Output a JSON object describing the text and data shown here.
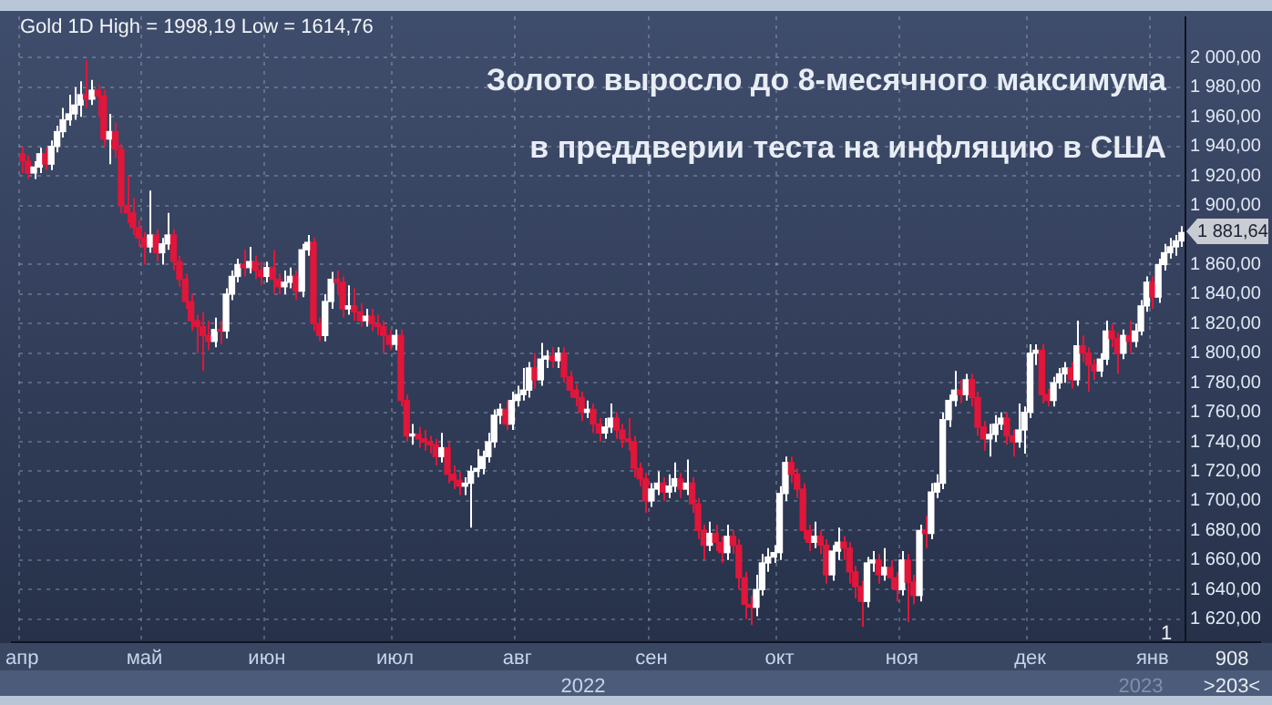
{
  "chart_data": {
    "type": "candlestick",
    "title": "Gold 1D High = 1998,19 Low = 1614,76",
    "annotations": [
      "Золото выросло до 8-месячного максимума",
      "в преддверии теста на инфляцию в США",
      "1 881,64",
      "2022",
      "2023",
      "908",
      ">203<",
      "1"
    ],
    "colors": [
      "#e0163a",
      "#e0163a",
      "#ffffff",
      "#ffffff",
      "#e0163a",
      "#ffffff",
      "#ffffff",
      "#ffffff",
      "#ffffff",
      "#ffffff",
      "#ffffff",
      "#e0163a",
      "#ffffff",
      "#e0163a",
      "#e0163a",
      "#ffffff",
      "#e0163a",
      "#e0163a",
      "#e0163a",
      "#e0163a",
      "#e0163a",
      "#e0163a",
      "#ffffff",
      "#e0163a",
      "#ffffff",
      "#ffffff",
      "#e0163a",
      "#e0163a",
      "#e0163a",
      "#e0163a",
      "#e0163a",
      "#e0163a",
      "#e0163a",
      "#ffffff",
      "#e0163a",
      "#ffffff",
      "#ffffff",
      "#ffffff",
      "#e0163a",
      "#ffffff",
      "#e0163a",
      "#e0163a",
      "#ffffff",
      "#e0163a",
      "#e0163a",
      "#ffffff",
      "#ffffff",
      "#e0163a",
      "#ffffff",
      "#ffffff",
      "#e0163a",
      "#e0163a",
      "#ffffff",
      "#ffffff",
      "#e0163a",
      "#e0163a",
      "#ffffff",
      "#e0163a",
      "#e0163a",
      "#ffffff",
      "#e0163a",
      "#e0163a",
      "#e0163a",
      "#e0163a",
      "#ffffff",
      "#e0163a",
      "#e0163a",
      "#ffffff",
      "#e0163a",
      "#e0163a",
      "#e0163a",
      "#e0163a",
      "#ffffff",
      "#e0163a",
      "#e0163a",
      "#e0163a",
      "#ffffff",
      "#ffffff",
      "#ffffff",
      "#ffffff",
      "#ffffff",
      "#ffffff",
      "#ffffff",
      "#e0163a",
      "#ffffff",
      "#ffffff",
      "#ffffff",
      "#ffffff",
      "#e0163a",
      "#ffffff",
      "#ffffff",
      "#e0163a",
      "#ffffff",
      "#e0163a",
      "#e0163a",
      "#e0163a",
      "#e0163a",
      "#ffffff",
      "#e0163a",
      "#e0163a",
      "#ffffff",
      "#ffffff",
      "#e0163a",
      "#e0163a",
      "#e0163a",
      "#e0163a",
      "#e0163a",
      "#e0163a",
      "#ffffff",
      "#ffffff",
      "#e0163a",
      "#ffffff",
      "#ffffff",
      "#e0163a",
      "#ffffff",
      "#e0163a",
      "#e0163a",
      "#e0163a",
      "#ffffff",
      "#e0163a",
      "#e0163a",
      "#ffffff",
      "#e0163a",
      "#e0163a",
      "#e0163a",
      "#e0163a",
      "#ffffff",
      "#ffffff",
      "#ffffff",
      "#ffffff",
      "#ffffff",
      "#ffffff",
      "#e0163a",
      "#e0163a",
      "#e0163a",
      "#e0163a",
      "#ffffff",
      "#e0163a",
      "#e0163a",
      "#ffffff",
      "#ffffff",
      "#e0163a",
      "#e0163a",
      "#e0163a",
      "#e0163a",
      "#ffffff",
      "#ffffff",
      "#e0163a",
      "#ffffff",
      "#e0163a",
      "#e0163a",
      "#ffffff",
      "#e0163a",
      "#e0163a",
      "#ffffff",
      "#e0163a",
      "#ffffff",
      "#ffffff",
      "#ffffff",
      "#ffffff",
      "#ffffff",
      "#e0163a",
      "#ffffff",
      "#e0163a",
      "#e0163a",
      "#e0163a",
      "#ffffff",
      "#ffffff",
      "#ffffff",
      "#e0163a",
      "#e0163a",
      "#ffffff",
      "#ffffff",
      "#ffffff",
      "#ffffff",
      "#e0163a",
      "#e0163a",
      "#ffffff",
      "#ffffff",
      "#ffffff",
      "#e0163a",
      "#ffffff",
      "#e0163a",
      "#e0163a",
      "#e0163a",
      "#ffffff",
      "#ffffff",
      "#e0163a",
      "#e0163a",
      "#ffffff",
      "#e0163a",
      "#ffffff",
      "#ffffff",
      "#ffffff",
      "#e0163a",
      "#ffffff",
      "#ffffff",
      "#ffffff",
      "#ffffff",
      "#ffffff"
    ],
    "ylim": [
      1605,
      2028
    ],
    "yticks": [
      {
        "value": 1620,
        "label": "1 620,00"
      },
      {
        "value": 1640,
        "label": "1 640,00"
      },
      {
        "value": 1660,
        "label": "1 660,00"
      },
      {
        "value": 1680,
        "label": "1 680,00"
      },
      {
        "value": 1700,
        "label": "1 700,00"
      },
      {
        "value": 1720,
        "label": "1 720,00"
      },
      {
        "value": 1740,
        "label": "1 740,00"
      },
      {
        "value": 1760,
        "label": "1 760,00"
      },
      {
        "value": 1780,
        "label": "1 780,00"
      },
      {
        "value": 1800,
        "label": "1 800,00"
      },
      {
        "value": 1820,
        "label": "1 820,00"
      },
      {
        "value": 1840,
        "label": "1 840,00"
      },
      {
        "value": 1860,
        "label": "1 860,00"
      },
      {
        "value": 1900,
        "label": "1 900,00"
      },
      {
        "value": 1920,
        "label": "1 920,00"
      },
      {
        "value": 1940,
        "label": "1 940,00"
      },
      {
        "value": 1960,
        "label": "1 960,00"
      },
      {
        "value": 1980,
        "label": "1 980,00"
      },
      {
        "value": 2000,
        "label": "2 000,00"
      }
    ],
    "grid": true,
    "categories": [
      "апр",
      null,
      null,
      null,
      null,
      null,
      null,
      null,
      null,
      null,
      null,
      null,
      null,
      null,
      null,
      null,
      null,
      null,
      null,
      null,
      null,
      "май",
      null,
      null,
      null,
      null,
      null,
      null,
      null,
      null,
      null,
      null,
      null,
      null,
      null,
      null,
      null,
      null,
      null,
      null,
      null,
      null,
      "июн",
      null,
      null,
      null,
      null,
      null,
      null,
      null,
      null,
      null,
      null,
      null,
      null,
      null,
      null,
      null,
      null,
      null,
      null,
      null,
      null,
      null,
      "июл",
      null,
      null,
      null,
      null,
      null,
      null,
      null,
      null,
      null,
      null,
      null,
      null,
      null,
      null,
      null,
      null,
      null,
      null,
      null,
      null,
      "авг",
      null,
      null,
      null,
      null,
      null,
      null,
      null,
      null,
      null,
      null,
      null,
      null,
      null,
      null,
      null,
      null,
      null,
      null,
      null,
      null,
      null,
      null,
      "сен",
      null,
      null,
      null,
      null,
      null,
      null,
      null,
      null,
      null,
      null,
      null,
      null,
      null,
      null,
      null,
      null,
      null,
      null,
      null,
      null,
      null,
      "окт",
      null,
      null,
      null,
      null,
      null,
      null,
      null,
      null,
      null,
      null,
      null,
      null,
      null,
      null,
      null,
      null,
      null,
      null,
      null,
      null,
      "ноя",
      null,
      null,
      null,
      null,
      null,
      null,
      null,
      null,
      null,
      null,
      null,
      null,
      null,
      null,
      null,
      null,
      null,
      null,
      null,
      null,
      null,
      "дек",
      null,
      null,
      null,
      null,
      null,
      null,
      null,
      null,
      null,
      null,
      null,
      null,
      null,
      null,
      null,
      null,
      null,
      null,
      null,
      null,
      "янв",
      null,
      null,
      null,
      null,
      null
    ],
    "ohlc": [
      [
        1935,
        1940,
        1922,
        1930
      ],
      [
        1930,
        1934,
        1918,
        1922
      ],
      [
        1922,
        1930,
        1918,
        1926
      ],
      [
        1926,
        1939,
        1922,
        1935
      ],
      [
        1935,
        1939,
        1924,
        1928
      ],
      [
        1928,
        1944,
        1924,
        1940
      ],
      [
        1940,
        1954,
        1936,
        1950
      ],
      [
        1950,
        1966,
        1946,
        1958
      ],
      [
        1958,
        1975,
        1954,
        1962
      ],
      [
        1962,
        1980,
        1958,
        1968
      ],
      [
        1968,
        1984,
        1960,
        1975
      ],
      [
        1975,
        1998.19,
        1966,
        1972
      ],
      [
        1972,
        1985,
        1968,
        1978
      ],
      [
        1978,
        1982,
        1960,
        1974
      ],
      [
        1974,
        1978,
        1940,
        1945
      ],
      [
        1945,
        1962,
        1928,
        1950
      ],
      [
        1950,
        1956,
        1932,
        1938
      ],
      [
        1938,
        1942,
        1895,
        1900
      ],
      [
        1900,
        1920,
        1888,
        1895
      ],
      [
        1895,
        1905,
        1880,
        1885
      ],
      [
        1885,
        1890,
        1872,
        1878
      ],
      [
        1878,
        1882,
        1860,
        1872
      ],
      [
        1872,
        1910,
        1868,
        1880
      ],
      [
        1880,
        1884,
        1862,
        1868
      ],
      [
        1868,
        1878,
        1860,
        1874
      ],
      [
        1874,
        1895,
        1870,
        1880
      ],
      [
        1880,
        1884,
        1856,
        1862
      ],
      [
        1862,
        1866,
        1845,
        1850
      ],
      [
        1850,
        1854,
        1830,
        1835
      ],
      [
        1835,
        1840,
        1815,
        1822
      ],
      [
        1822,
        1826,
        1800,
        1818
      ],
      [
        1818,
        1828,
        1788,
        1812
      ],
      [
        1812,
        1822,
        1802,
        1808
      ],
      [
        1808,
        1824,
        1804,
        1816
      ],
      [
        1816,
        1822,
        1806,
        1815
      ],
      [
        1815,
        1844,
        1810,
        1840
      ],
      [
        1840,
        1856,
        1836,
        1852
      ],
      [
        1852,
        1864,
        1848,
        1860
      ],
      [
        1860,
        1870,
        1852,
        1858
      ],
      [
        1858,
        1872,
        1854,
        1862
      ],
      [
        1862,
        1866,
        1850,
        1856
      ],
      [
        1856,
        1862,
        1846,
        1852
      ],
      [
        1852,
        1862,
        1848,
        1858
      ],
      [
        1858,
        1870,
        1840,
        1850
      ],
      [
        1850,
        1854,
        1840,
        1845
      ],
      [
        1845,
        1856,
        1840,
        1848
      ],
      [
        1848,
        1858,
        1844,
        1852
      ],
      [
        1852,
        1856,
        1836,
        1842
      ],
      [
        1842,
        1874,
        1838,
        1870
      ],
      [
        1870,
        1880,
        1866,
        1875
      ],
      [
        1875,
        1878,
        1815,
        1820
      ],
      [
        1820,
        1824,
        1808,
        1812
      ],
      [
        1812,
        1840,
        1808,
        1835
      ],
      [
        1835,
        1855,
        1830,
        1850
      ],
      [
        1850,
        1856,
        1840,
        1848
      ],
      [
        1848,
        1852,
        1824,
        1830
      ],
      [
        1830,
        1846,
        1826,
        1832
      ],
      [
        1832,
        1844,
        1822,
        1828
      ],
      [
        1828,
        1834,
        1818,
        1822
      ],
      [
        1822,
        1830,
        1818,
        1825
      ],
      [
        1825,
        1830,
        1815,
        1820
      ],
      [
        1820,
        1826,
        1812,
        1818
      ],
      [
        1818,
        1822,
        1800,
        1812
      ],
      [
        1812,
        1816,
        1802,
        1806
      ],
      [
        1806,
        1816,
        1802,
        1812
      ],
      [
        1812,
        1816,
        1764,
        1768
      ],
      [
        1768,
        1772,
        1740,
        1744
      ],
      [
        1744,
        1752,
        1738,
        1745
      ],
      [
        1745,
        1750,
        1736,
        1742
      ],
      [
        1742,
        1748,
        1734,
        1740
      ],
      [
        1740,
        1744,
        1732,
        1738
      ],
      [
        1738,
        1742,
        1724,
        1730
      ],
      [
        1730,
        1746,
        1726,
        1736
      ],
      [
        1736,
        1740,
        1712,
        1718
      ],
      [
        1718,
        1724,
        1708,
        1714
      ],
      [
        1714,
        1720,
        1704,
        1710
      ],
      [
        1710,
        1716,
        1704,
        1712
      ],
      [
        1712,
        1724,
        1682,
        1720
      ],
      [
        1720,
        1735,
        1716,
        1722
      ],
      [
        1722,
        1734,
        1718,
        1730
      ],
      [
        1730,
        1746,
        1726,
        1740
      ],
      [
        1740,
        1762,
        1736,
        1758
      ],
      [
        1758,
        1766,
        1752,
        1762
      ],
      [
        1762,
        1768,
        1748,
        1752
      ],
      [
        1752,
        1774,
        1748,
        1768
      ],
      [
        1768,
        1778,
        1764,
        1772
      ],
      [
        1772,
        1790,
        1768,
        1775
      ],
      [
        1775,
        1794,
        1770,
        1790
      ],
      [
        1790,
        1800,
        1776,
        1782
      ],
      [
        1782,
        1807,
        1778,
        1796
      ],
      [
        1796,
        1802,
        1790,
        1798
      ],
      [
        1798,
        1804,
        1790,
        1795
      ],
      [
        1795,
        1804,
        1790,
        1800
      ],
      [
        1800,
        1804,
        1780,
        1784
      ],
      [
        1784,
        1788,
        1770,
        1775
      ],
      [
        1775,
        1779,
        1764,
        1770
      ],
      [
        1770,
        1774,
        1754,
        1760
      ],
      [
        1760,
        1768,
        1756,
        1762
      ],
      [
        1762,
        1766,
        1746,
        1752
      ],
      [
        1752,
        1756,
        1740,
        1746
      ],
      [
        1746,
        1756,
        1742,
        1750
      ],
      [
        1750,
        1766,
        1746,
        1756
      ],
      [
        1756,
        1760,
        1742,
        1748
      ],
      [
        1748,
        1752,
        1736,
        1742
      ],
      [
        1742,
        1756,
        1734,
        1740
      ],
      [
        1740,
        1744,
        1716,
        1722
      ],
      [
        1722,
        1726,
        1710,
        1715
      ],
      [
        1715,
        1719,
        1692,
        1700
      ],
      [
        1700,
        1712,
        1696,
        1708
      ],
      [
        1708,
        1720,
        1704,
        1712
      ],
      [
        1712,
        1716,
        1700,
        1706
      ],
      [
        1706,
        1718,
        1702,
        1710
      ],
      [
        1710,
        1726,
        1706,
        1715
      ],
      [
        1715,
        1719,
        1702,
        1708
      ],
      [
        1708,
        1728,
        1704,
        1712
      ],
      [
        1712,
        1716,
        1692,
        1698
      ],
      [
        1698,
        1702,
        1674,
        1680
      ],
      [
        1680,
        1684,
        1660,
        1670
      ],
      [
        1670,
        1686,
        1666,
        1678
      ],
      [
        1678,
        1684,
        1666,
        1672
      ],
      [
        1672,
        1676,
        1658,
        1665
      ],
      [
        1665,
        1684,
        1660,
        1676
      ],
      [
        1676,
        1680,
        1664,
        1670
      ],
      [
        1670,
        1674,
        1640,
        1648
      ],
      [
        1648,
        1652,
        1620,
        1630
      ],
      [
        1630,
        1636,
        1616,
        1628
      ],
      [
        1628,
        1650,
        1622,
        1640
      ],
      [
        1640,
        1664,
        1636,
        1658
      ],
      [
        1658,
        1668,
        1652,
        1662
      ],
      [
        1662,
        1670,
        1658,
        1665
      ],
      [
        1665,
        1710,
        1660,
        1705
      ],
      [
        1705,
        1730,
        1700,
        1726
      ],
      [
        1726,
        1730,
        1712,
        1718
      ],
      [
        1718,
        1722,
        1702,
        1708
      ],
      [
        1708,
        1712,
        1674,
        1680
      ],
      [
        1680,
        1684,
        1666,
        1672
      ],
      [
        1672,
        1686,
        1668,
        1676
      ],
      [
        1676,
        1680,
        1664,
        1670
      ],
      [
        1670,
        1674,
        1644,
        1650
      ],
      [
        1650,
        1670,
        1646,
        1666
      ],
      [
        1666,
        1682,
        1660,
        1672
      ],
      [
        1672,
        1676,
        1660,
        1668
      ],
      [
        1668,
        1672,
        1644,
        1652
      ],
      [
        1652,
        1656,
        1634,
        1642
      ],
      [
        1642,
        1646,
        1614.76,
        1632
      ],
      [
        1632,
        1662,
        1628,
        1658
      ],
      [
        1658,
        1666,
        1652,
        1660
      ],
      [
        1660,
        1664,
        1644,
        1650
      ],
      [
        1650,
        1668,
        1646,
        1655
      ],
      [
        1655,
        1660,
        1640,
        1648
      ],
      [
        1648,
        1652,
        1632,
        1640
      ],
      [
        1640,
        1666,
        1636,
        1660
      ],
      [
        1660,
        1664,
        1618,
        1645
      ],
      [
        1645,
        1650,
        1630,
        1636
      ],
      [
        1636,
        1684,
        1632,
        1680
      ],
      [
        1680,
        1690,
        1668,
        1678
      ],
      [
        1678,
        1712,
        1674,
        1706
      ],
      [
        1706,
        1718,
        1702,
        1712
      ],
      [
        1712,
        1760,
        1708,
        1755
      ],
      [
        1755,
        1772,
        1750,
        1768
      ],
      [
        1768,
        1788,
        1764,
        1775
      ],
      [
        1775,
        1782,
        1766,
        1772
      ],
      [
        1772,
        1786,
        1768,
        1782
      ],
      [
        1782,
        1786,
        1764,
        1770
      ],
      [
        1770,
        1774,
        1744,
        1750
      ],
      [
        1750,
        1754,
        1734,
        1742
      ],
      [
        1742,
        1752,
        1730,
        1745
      ],
      [
        1745,
        1758,
        1740,
        1752
      ],
      [
        1752,
        1760,
        1748,
        1756
      ],
      [
        1756,
        1760,
        1738,
        1744
      ],
      [
        1744,
        1748,
        1730,
        1740
      ],
      [
        1740,
        1766,
        1736,
        1748
      ],
      [
        1748,
        1764,
        1732,
        1760
      ],
      [
        1760,
        1806,
        1756,
        1800
      ],
      [
        1800,
        1806,
        1792,
        1802
      ],
      [
        1802,
        1806,
        1766,
        1772
      ],
      [
        1772,
        1776,
        1764,
        1768
      ],
      [
        1768,
        1784,
        1764,
        1780
      ],
      [
        1780,
        1790,
        1776,
        1786
      ],
      [
        1786,
        1794,
        1780,
        1790
      ],
      [
        1790,
        1794,
        1776,
        1782
      ],
      [
        1782,
        1822,
        1778,
        1805
      ],
      [
        1805,
        1812,
        1794,
        1800
      ],
      [
        1800,
        1804,
        1774,
        1792
      ],
      [
        1792,
        1796,
        1782,
        1788
      ],
      [
        1788,
        1800,
        1784,
        1796
      ],
      [
        1796,
        1822,
        1792,
        1815
      ],
      [
        1815,
        1820,
        1804,
        1810
      ],
      [
        1810,
        1814,
        1786,
        1800
      ],
      [
        1800,
        1816,
        1796,
        1812
      ],
      [
        1812,
        1822,
        1800,
        1808
      ],
      [
        1808,
        1820,
        1804,
        1815
      ],
      [
        1815,
        1836,
        1812,
        1832
      ],
      [
        1832,
        1852,
        1828,
        1848
      ],
      [
        1848,
        1852,
        1830,
        1838
      ],
      [
        1838,
        1864,
        1834,
        1860
      ],
      [
        1860,
        1874,
        1856,
        1868
      ],
      [
        1868,
        1878,
        1864,
        1872
      ],
      [
        1872,
        1880,
        1866,
        1876
      ],
      [
        1876,
        1886,
        1872,
        1881.64
      ]
    ]
  }
}
